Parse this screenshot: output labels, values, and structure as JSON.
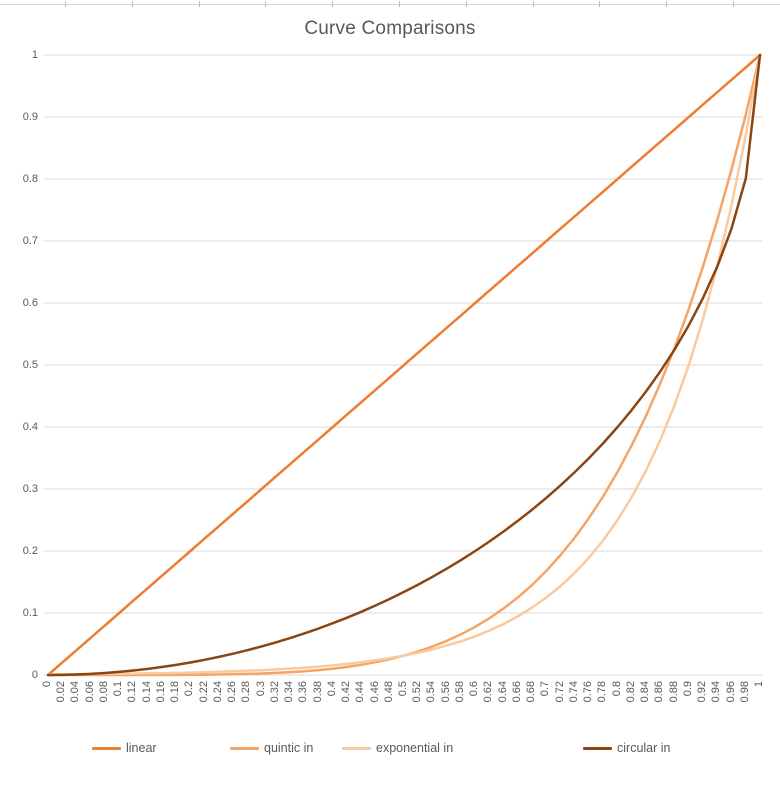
{
  "window": {
    "background": "#ffffff"
  },
  "colors": {
    "text": "#595959",
    "gridline": "#d9d9d9",
    "ruler_line": "#d9d9d9",
    "ruler_tick": "#c0c0c0"
  },
  "chart_data": {
    "type": "line",
    "title": "Curve Comparisons",
    "xlabel": "",
    "ylabel": "",
    "xlim": [
      0,
      1
    ],
    "ylim": [
      0,
      1
    ],
    "grid": true,
    "legend_position": "bottom",
    "x": [
      0,
      0.02,
      0.04,
      0.06,
      0.08,
      0.1,
      0.12,
      0.14,
      0.16,
      0.18,
      0.2,
      0.22,
      0.24,
      0.26,
      0.28,
      0.3,
      0.32,
      0.34,
      0.36,
      0.38,
      0.4,
      0.42,
      0.44,
      0.46,
      0.48,
      0.5,
      0.52,
      0.54,
      0.56,
      0.58,
      0.6,
      0.62,
      0.64,
      0.66,
      0.68,
      0.7,
      0.72,
      0.74,
      0.76,
      0.78,
      0.8,
      0.82,
      0.84,
      0.86,
      0.88,
      0.9,
      0.92,
      0.94,
      0.96,
      0.98,
      1
    ],
    "x_tick_labels": [
      "0",
      "0.02",
      "0.04",
      "0.06",
      "0.08",
      "0.1",
      "0.12",
      "0.14",
      "0.16",
      "0.18",
      "0.2",
      "0.22",
      "0.24",
      "0.26",
      "0.28",
      "0.3",
      "0.32",
      "0.34",
      "0.36",
      "0.38",
      "0.4",
      "0.42",
      "0.44",
      "0.46",
      "0.48",
      "0.5",
      "0.52",
      "0.54",
      "0.56",
      "0.58",
      "0.6",
      "0.62",
      "0.64",
      "0.66",
      "0.68",
      "0.7",
      "0.72",
      "0.74",
      "0.76",
      "0.78",
      "0.8",
      "0.82",
      "0.84",
      "0.86",
      "0.88",
      "0.9",
      "0.92",
      "0.94",
      "0.96",
      "0.98",
      "1"
    ],
    "y_ticks": [
      0,
      0.1,
      0.2,
      0.3,
      0.4,
      0.5,
      0.6,
      0.7,
      0.8,
      0.9,
      1
    ],
    "y_tick_labels": [
      "0",
      "0.1",
      "0.2",
      "0.3",
      "0.4",
      "0.5",
      "0.6",
      "0.7",
      "0.8",
      "0.9",
      "1"
    ],
    "series": [
      {
        "name": "linear",
        "color": "#ED7D31",
        "values": [
          0,
          0.02,
          0.04,
          0.06,
          0.08,
          0.1,
          0.12,
          0.14,
          0.16,
          0.18,
          0.2,
          0.22,
          0.24,
          0.26,
          0.28,
          0.3,
          0.32,
          0.34,
          0.36,
          0.38,
          0.4,
          0.42,
          0.44,
          0.46,
          0.48,
          0.5,
          0.52,
          0.54,
          0.56,
          0.58,
          0.6,
          0.62,
          0.64,
          0.66,
          0.68,
          0.7,
          0.72,
          0.74,
          0.76,
          0.78,
          0.8,
          0.82,
          0.84,
          0.86,
          0.88,
          0.9,
          0.92,
          0.94,
          0.96,
          0.98,
          1
        ]
      },
      {
        "name": "quintic in",
        "color": "#F5A466",
        "values": [
          0,
          0,
          0,
          1e-06,
          3e-06,
          1e-05,
          2.5e-05,
          5.4e-05,
          0.000105,
          0.000189,
          0.00032,
          0.000515,
          0.000796,
          0.001188,
          0.001721,
          0.00243,
          0.003355,
          0.004544,
          0.006047,
          0.007924,
          0.01024,
          0.013069,
          0.016492,
          0.020593,
          0.025466,
          0.03125,
          0.038068,
          0.045916,
          0.055073,
          0.065636,
          0.07776,
          0.091613,
          0.107374,
          0.125233,
          0.145393,
          0.16807,
          0.193492,
          0.221901,
          0.253553,
          0.288717,
          0.32768,
          0.37074,
          0.418212,
          0.470427,
          0.527732,
          0.59049,
          0.659082,
          0.733904,
          0.815373,
          0.903921,
          1
        ]
      },
      {
        "name": "exponential in",
        "color": "#F9CA9E",
        "values": [
          0.000977,
          0.001122,
          0.001289,
          0.001481,
          0.001701,
          0.001953,
          0.002244,
          0.002577,
          0.002961,
          0.003401,
          0.003906,
          0.004488,
          0.005155,
          0.005922,
          0.006803,
          0.007813,
          0.008976,
          0.010311,
          0.011844,
          0.013606,
          0.015625,
          0.017951,
          0.020621,
          0.023688,
          0.027211,
          0.03125,
          0.035902,
          0.041242,
          0.047377,
          0.054422,
          0.0625,
          0.071804,
          0.082483,
          0.094754,
          0.108843,
          0.125,
          0.143608,
          0.164966,
          0.189508,
          0.217687,
          0.25,
          0.287216,
          0.329932,
          0.379015,
          0.435275,
          0.5,
          0.574349,
          0.659754,
          0.757858,
          0.870551,
          1
        ]
      },
      {
        "name": "circular in",
        "color": "#8B4513",
        "values": [
          0,
          0.0002,
          0.0008,
          0.0018,
          0.003206,
          0.005013,
          0.007231,
          0.009849,
          0.012883,
          0.016333,
          0.020204,
          0.0245,
          0.029227,
          0.034391,
          0.04,
          0.046061,
          0.052582,
          0.059575,
          0.067048,
          0.075014,
          0.083485,
          0.092476,
          0.102003,
          0.112081,
          0.122732,
          0.133975,
          0.145834,
          0.158335,
          0.171508,
          0.185384,
          0.2,
          0.215398,
          0.231625,
          0.248734,
          0.266788,
          0.285857,
          0.306026,
          0.327393,
          0.350077,
          0.37422,
          0.4,
          0.427636,
          0.457413,
          0.489706,
          0.525026,
          0.56411,
          0.608082,
          0.658826,
          0.72,
          0.801003,
          1
        ]
      }
    ]
  }
}
